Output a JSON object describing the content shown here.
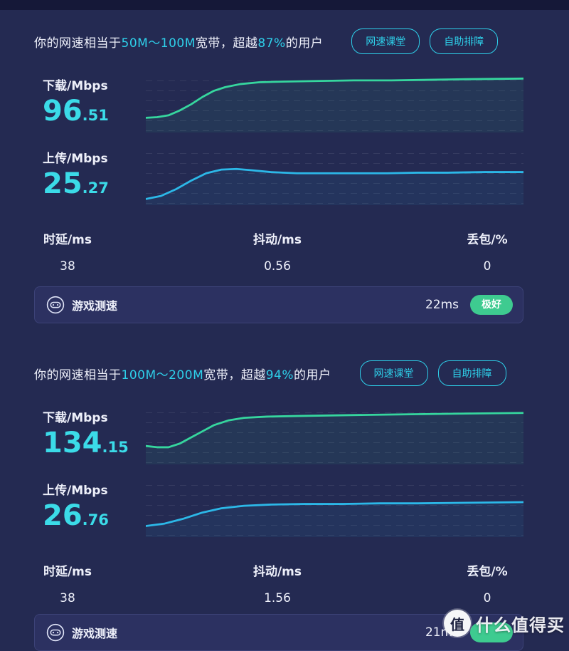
{
  "theme": {
    "bg": "#242a52",
    "strip": "#151838",
    "text": "#eef0fa",
    "accent": "#2ed0ea",
    "value": "#3bdbe8",
    "panel": "#2c3161",
    "panelBorder": "#3c4277",
    "badge": "#3ecb90"
  },
  "watermark": {
    "logo_char": "值",
    "text": "什么值得买"
  },
  "sections": [
    {
      "summary": {
        "prefix": "你的网速相当于",
        "bandwidth": "50M～100M",
        "mid": "宽带，超越",
        "percent": "87%",
        "suffix": "的用户"
      },
      "buttons": {
        "lesson": "网速课堂",
        "troubleshoot": "自助排障"
      },
      "download": {
        "label": "下载/Mbps",
        "int": "96",
        "dec": ".51",
        "chart": {
          "type": "line",
          "color": "#36d69e",
          "points": [
            [
              0,
              76
            ],
            [
              3,
              75
            ],
            [
              6,
              72
            ],
            [
              9,
              64
            ],
            [
              12,
              54
            ],
            [
              15,
              42
            ],
            [
              18,
              32
            ],
            [
              21,
              26
            ],
            [
              25,
              21
            ],
            [
              30,
              18
            ],
            [
              36,
              17
            ],
            [
              45,
              16
            ],
            [
              55,
              15
            ],
            [
              65,
              15
            ],
            [
              75,
              14
            ],
            [
              85,
              13
            ],
            [
              100,
              12
            ]
          ]
        }
      },
      "upload": {
        "label": "上传/Mbps",
        "int": "25",
        "dec": ".27",
        "chart": {
          "type": "line",
          "color": "#2cb8e8",
          "points": [
            [
              0,
              90
            ],
            [
              4,
              85
            ],
            [
              8,
              74
            ],
            [
              12,
              60
            ],
            [
              16,
              48
            ],
            [
              20,
              42
            ],
            [
              24,
              41
            ],
            [
              28,
              43
            ],
            [
              33,
              46
            ],
            [
              40,
              48
            ],
            [
              48,
              48
            ],
            [
              56,
              48
            ],
            [
              64,
              48
            ],
            [
              72,
              47
            ],
            [
              80,
              47
            ],
            [
              90,
              46
            ],
            [
              100,
              46
            ]
          ]
        }
      },
      "stats": [
        {
          "label": "时延/ms",
          "value": "38"
        },
        {
          "label": "抖动/ms",
          "value": "0.56"
        },
        {
          "label": "丢包/%",
          "value": "0"
        }
      ],
      "game": {
        "label": "游戏测速",
        "ping": "22ms",
        "badge": "极好"
      }
    },
    {
      "summary": {
        "prefix": "你的网速相当于",
        "bandwidth": "100M～200M",
        "mid": "宽带，超越",
        "percent": "94%",
        "suffix": "的用户"
      },
      "buttons": {
        "lesson": "网速课堂",
        "troubleshoot": "自助排障"
      },
      "download": {
        "label": "下载/Mbps",
        "int": "134",
        "dec": ".15",
        "chart": {
          "type": "line",
          "color": "#36d69e",
          "points": [
            [
              0,
              70
            ],
            [
              3,
              72
            ],
            [
              6,
              72
            ],
            [
              9,
              66
            ],
            [
              12,
              56
            ],
            [
              15,
              46
            ],
            [
              18,
              36
            ],
            [
              22,
              28
            ],
            [
              26,
              24
            ],
            [
              32,
              22
            ],
            [
              40,
              21
            ],
            [
              50,
              20
            ],
            [
              60,
              19
            ],
            [
              72,
              18
            ],
            [
              85,
              17
            ],
            [
              100,
              16
            ]
          ]
        }
      },
      "upload": {
        "label": "上传/Mbps",
        "int": "26",
        "dec": ".76",
        "chart": {
          "type": "line",
          "color": "#2cb8e8",
          "points": [
            [
              0,
              82
            ],
            [
              5,
              78
            ],
            [
              10,
              70
            ],
            [
              15,
              60
            ],
            [
              20,
              53
            ],
            [
              26,
              49
            ],
            [
              33,
              47
            ],
            [
              42,
              46
            ],
            [
              52,
              46
            ],
            [
              62,
              45
            ],
            [
              72,
              45
            ],
            [
              85,
              44
            ],
            [
              100,
              43
            ]
          ]
        }
      },
      "stats": [
        {
          "label": "时延/ms",
          "value": "38"
        },
        {
          "label": "抖动/ms",
          "value": "1.56"
        },
        {
          "label": "丢包/%",
          "value": "0"
        }
      ],
      "game": {
        "label": "游戏测速",
        "ping": "21ms",
        "badge": ""
      }
    }
  ]
}
